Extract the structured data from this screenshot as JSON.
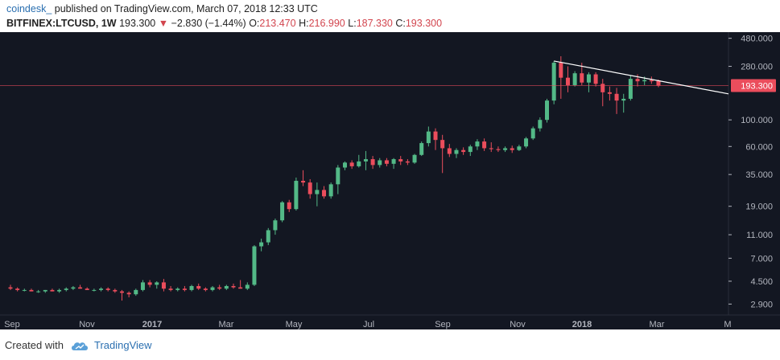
{
  "header": {
    "author": "coindesk_",
    "published": "published on TradingView.com, March 07, 2018 12:33 UTC",
    "symbol": "BITFINEX:LTCUSD, 1W",
    "last": "193.300",
    "arrow": "▼",
    "change": "−2.830 (−1.44%)",
    "o_label": "O:",
    "o_value": "213.470",
    "h_label": "H:",
    "h_value": "216.990",
    "l_label": "L:",
    "l_value": "187.330",
    "c_label": "C:",
    "c_value": "193.300"
  },
  "colors": {
    "background": "#131722",
    "up": "#53b987",
    "down": "#eb4d5c",
    "trendline": "#ffffff",
    "price_line": "#eb4d5c",
    "axis_text": "#b2b5be"
  },
  "chart_data": {
    "type": "candlestick",
    "scale": "log",
    "ylim": [
      2.5,
      500
    ],
    "y_ticks": [
      "480.000",
      "280.000",
      "100.000",
      "60.000",
      "35.000",
      "19.000",
      "11.000",
      "7.000",
      "4.500",
      "2.900"
    ],
    "x_ticks": [
      "Sep",
      "Nov",
      "2017",
      "Mar",
      "May",
      "Jul",
      "Sep",
      "Nov",
      "2018",
      "Mar",
      "M"
    ],
    "last_price_label": "193.300",
    "last_price": 193.3,
    "candles": [
      [
        4.0,
        4.2,
        3.8,
        3.9
      ],
      [
        3.9,
        4.0,
        3.7,
        3.8
      ],
      [
        3.8,
        3.9,
        3.7,
        3.8
      ],
      [
        3.8,
        3.9,
        3.7,
        3.7
      ],
      [
        3.7,
        3.8,
        3.6,
        3.7
      ],
      [
        3.7,
        3.8,
        3.6,
        3.8
      ],
      [
        3.8,
        3.9,
        3.7,
        3.7
      ],
      [
        3.7,
        3.9,
        3.6,
        3.8
      ],
      [
        3.8,
        4.0,
        3.7,
        3.9
      ],
      [
        3.9,
        4.1,
        3.8,
        4.0
      ],
      [
        4.0,
        4.2,
        3.9,
        3.9
      ],
      [
        3.9,
        4.0,
        3.8,
        3.8
      ],
      [
        3.8,
        3.9,
        3.7,
        3.8
      ],
      [
        3.8,
        4.0,
        3.7,
        3.9
      ],
      [
        3.9,
        4.0,
        3.7,
        3.8
      ],
      [
        3.8,
        3.9,
        3.6,
        3.7
      ],
      [
        3.7,
        3.8,
        3.1,
        3.6
      ],
      [
        3.6,
        3.7,
        3.3,
        3.5
      ],
      [
        3.5,
        3.9,
        3.4,
        3.8
      ],
      [
        3.8,
        4.6,
        3.7,
        4.4
      ],
      [
        4.4,
        4.6,
        4.0,
        4.2
      ],
      [
        4.2,
        4.5,
        3.9,
        4.4
      ],
      [
        4.4,
        4.7,
        3.7,
        3.9
      ],
      [
        3.9,
        4.1,
        3.7,
        3.8
      ],
      [
        3.8,
        4.0,
        3.7,
        3.9
      ],
      [
        3.9,
        4.1,
        3.7,
        3.8
      ],
      [
        3.8,
        4.2,
        3.7,
        4.1
      ],
      [
        4.1,
        4.3,
        3.8,
        3.9
      ],
      [
        3.9,
        4.0,
        3.7,
        3.8
      ],
      [
        3.8,
        4.1,
        3.7,
        4.0
      ],
      [
        4.0,
        4.2,
        3.8,
        3.9
      ],
      [
        3.9,
        4.2,
        3.8,
        4.1
      ],
      [
        4.1,
        4.3,
        3.9,
        4.0
      ],
      [
        4.0,
        4.6,
        3.9,
        3.9
      ],
      [
        3.9,
        4.4,
        3.8,
        4.2
      ],
      [
        4.2,
        9.0,
        4.1,
        8.8
      ],
      [
        8.8,
        10.2,
        8.0,
        9.5
      ],
      [
        9.5,
        12.5,
        9.0,
        12.0
      ],
      [
        12.0,
        15.0,
        11.0,
        14.5
      ],
      [
        14.5,
        21.0,
        14.0,
        20.5
      ],
      [
        20.5,
        21.5,
        17.0,
        18.0
      ],
      [
        18.0,
        33.0,
        17.5,
        31.0
      ],
      [
        31.0,
        38.0,
        28.0,
        30.0
      ],
      [
        30.0,
        32.0,
        22.0,
        24.0
      ],
      [
        24.0,
        30.0,
        19.0,
        26.0
      ],
      [
        26.0,
        28.0,
        22.0,
        23.0
      ],
      [
        23.0,
        30.0,
        22.0,
        29.0
      ],
      [
        29.0,
        42.0,
        24.0,
        40.0
      ],
      [
        40.0,
        45.0,
        38.0,
        44.0
      ],
      [
        44.0,
        46.0,
        39.0,
        41.0
      ],
      [
        41.0,
        51.0,
        40.0,
        45.0
      ],
      [
        45.0,
        55.0,
        38.0,
        47.0
      ],
      [
        47.0,
        50.0,
        39.0,
        42.0
      ],
      [
        42.0,
        48.0,
        40.0,
        46.0
      ],
      [
        46.0,
        48.0,
        41.0,
        43.0
      ],
      [
        43.0,
        48.0,
        39.0,
        47.0
      ],
      [
        47.0,
        50.0,
        42.0,
        45.0
      ],
      [
        45.0,
        47.0,
        42.0,
        44.0
      ],
      [
        44.0,
        52.0,
        43.0,
        51.0
      ],
      [
        51.0,
        66.0,
        50.0,
        64.0
      ],
      [
        64.0,
        88.0,
        60.0,
        80.0
      ],
      [
        80.0,
        85.0,
        56.0,
        68.0
      ],
      [
        68.0,
        75.0,
        36.0,
        58.0
      ],
      [
        58.0,
        63.0,
        49.0,
        52.0
      ],
      [
        52.0,
        58.0,
        48.0,
        56.0
      ],
      [
        56.0,
        59.0,
        51.0,
        54.0
      ],
      [
        54.0,
        62.0,
        50.0,
        60.0
      ],
      [
        60.0,
        69.0,
        56.0,
        66.0
      ],
      [
        66.0,
        70.0,
        55.0,
        58.0
      ],
      [
        58.0,
        65.0,
        54.0,
        57.0
      ],
      [
        57.0,
        60.0,
        54.0,
        56.0
      ],
      [
        56.0,
        60.0,
        54.0,
        58.0
      ],
      [
        58.0,
        61.0,
        53.0,
        56.0
      ],
      [
        56.0,
        62.0,
        55.0,
        60.0
      ],
      [
        60.0,
        72.0,
        58.0,
        70.0
      ],
      [
        70.0,
        88.0,
        68.0,
        85.0
      ],
      [
        85.0,
        105.0,
        80.0,
        100.0
      ],
      [
        100.0,
        150.0,
        95.0,
        145.0
      ],
      [
        145.0,
        310.0,
        135.0,
        300.0
      ],
      [
        300.0,
        340.0,
        150.0,
        225.0
      ],
      [
        225.0,
        280.0,
        170.0,
        195.0
      ],
      [
        195.0,
        255.0,
        190.0,
        245.0
      ],
      [
        245.0,
        300.0,
        195.0,
        205.0
      ],
      [
        205.0,
        250.0,
        170.0,
        240.0
      ],
      [
        240.0,
        250.0,
        190.0,
        200.0
      ],
      [
        200.0,
        220.0,
        130.0,
        170.0
      ],
      [
        170.0,
        190.0,
        145.0,
        165.0
      ],
      [
        165.0,
        185.0,
        112.0,
        145.0
      ],
      [
        145.0,
        165.0,
        115.0,
        150.0
      ],
      [
        150.0,
        235.0,
        145.0,
        220.0
      ],
      [
        220.0,
        240.0,
        190.0,
        210.0
      ],
      [
        210.0,
        230.0,
        195.0,
        215.0
      ],
      [
        215.0,
        230.0,
        200.0,
        210.0
      ],
      [
        213.47,
        216.99,
        187.33,
        193.3
      ]
    ]
  }
}
